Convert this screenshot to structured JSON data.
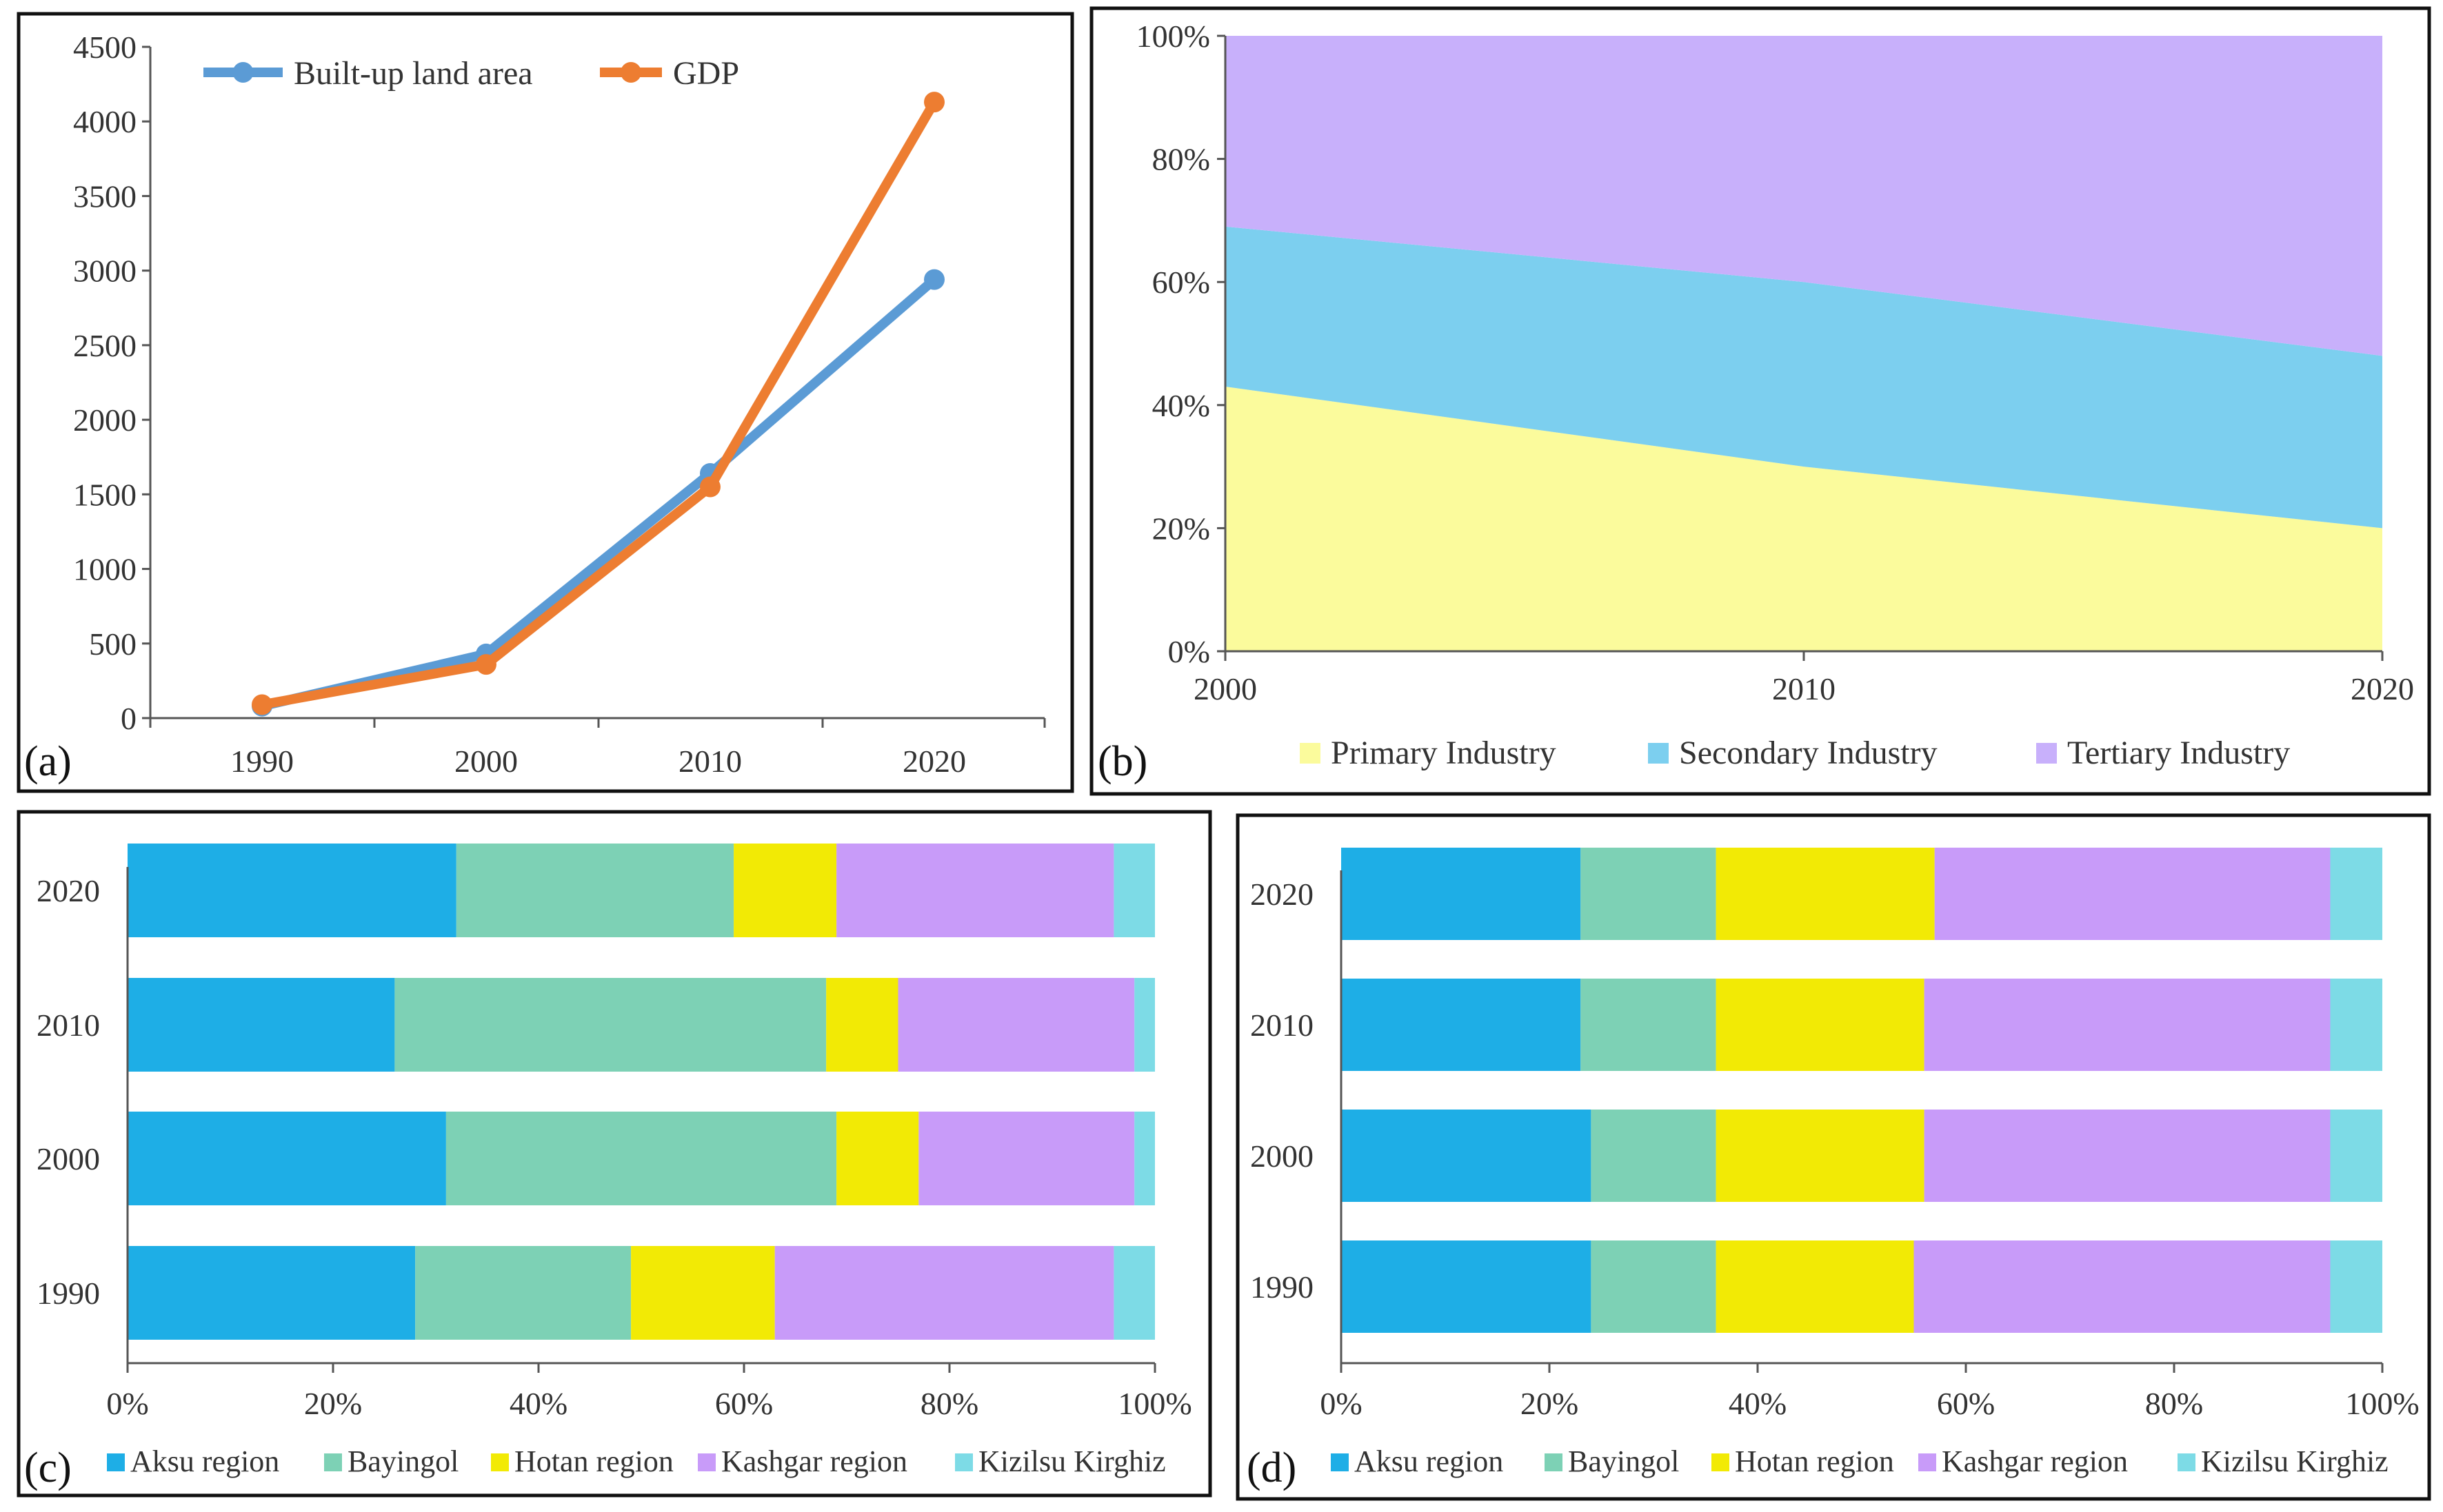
{
  "chart_data": [
    {
      "panel": "(a)",
      "type": "line",
      "x": [
        "1990",
        "2000",
        "2010",
        "2020"
      ],
      "series": [
        {
          "name": "Built-up land area",
          "values": [
            80,
            430,
            1640,
            2940
          ],
          "color": "#5b9bd5"
        },
        {
          "name": "GDP",
          "values": [
            90,
            360,
            1550,
            4130
          ],
          "color": "#ed7d31"
        }
      ],
      "ylim": [
        0,
        4500
      ],
      "yticks": [
        "0",
        "500",
        "1000",
        "1500",
        "2000",
        "2500",
        "3000",
        "3500",
        "4000",
        "4500"
      ],
      "legend": "top-left"
    },
    {
      "panel": "(b)",
      "type": "area",
      "x": [
        "2000",
        "2010",
        "2020"
      ],
      "series": [
        {
          "name": "Primary Industry",
          "values": [
            43,
            30,
            20
          ],
          "color": "#fbfb9c"
        },
        {
          "name": "Secondary Industry",
          "values": [
            26,
            30,
            28
          ],
          "color": "#7ccfef"
        },
        {
          "name": "Tertiary Industry",
          "values": [
            31,
            40,
            52
          ],
          "color": "#c8b0fb"
        }
      ],
      "ylim": [
        0,
        100
      ],
      "yticks": [
        "0%",
        "20%",
        "40%",
        "60%",
        "80%",
        "100%"
      ],
      "legend": "bottom"
    },
    {
      "panel": "(c)",
      "type": "bar",
      "orientation": "horizontal-stacked-percent",
      "categories": [
        "2020",
        "2010",
        "2000",
        "1990"
      ],
      "series": [
        {
          "name": "Aksu region",
          "values": [
            32,
            26,
            31,
            28
          ],
          "color": "#1eaee6"
        },
        {
          "name": "Bayingol",
          "values": [
            27,
            42,
            38,
            21
          ],
          "color": "#7dd1b5"
        },
        {
          "name": "Hotan region",
          "values": [
            10,
            7,
            8,
            14
          ],
          "color": "#f2ea05"
        },
        {
          "name": "Kashgar region",
          "values": [
            27,
            23,
            21,
            33
          ],
          "color": "#c89bf9"
        },
        {
          "name": "Kizilsu Kirghiz",
          "values": [
            4,
            2,
            2,
            4
          ],
          "color": "#7ddbe6"
        }
      ],
      "xticks": [
        "0%",
        "20%",
        "40%",
        "60%",
        "80%",
        "100%"
      ],
      "legend": "bottom"
    },
    {
      "panel": "(d)",
      "type": "bar",
      "orientation": "horizontal-stacked-percent",
      "categories": [
        "2020",
        "2010",
        "2000",
        "1990"
      ],
      "series": [
        {
          "name": "Aksu region",
          "values": [
            23,
            23,
            24,
            24
          ],
          "color": "#1eaee6"
        },
        {
          "name": "Bayingol",
          "values": [
            13,
            13,
            12,
            12
          ],
          "color": "#7dd1b5"
        },
        {
          "name": "Hotan region",
          "values": [
            21,
            20,
            20,
            19
          ],
          "color": "#f2ea05"
        },
        {
          "name": "Kashgar region",
          "values": [
            38,
            39,
            39,
            40
          ],
          "color": "#c89bf9"
        },
        {
          "name": "Kizilsu Kirghiz",
          "values": [
            5,
            5,
            5,
            5
          ],
          "color": "#7ddbe6"
        }
      ],
      "xticks": [
        "0%",
        "20%",
        "40%",
        "60%",
        "80%",
        "100%"
      ],
      "legend": "bottom"
    }
  ]
}
